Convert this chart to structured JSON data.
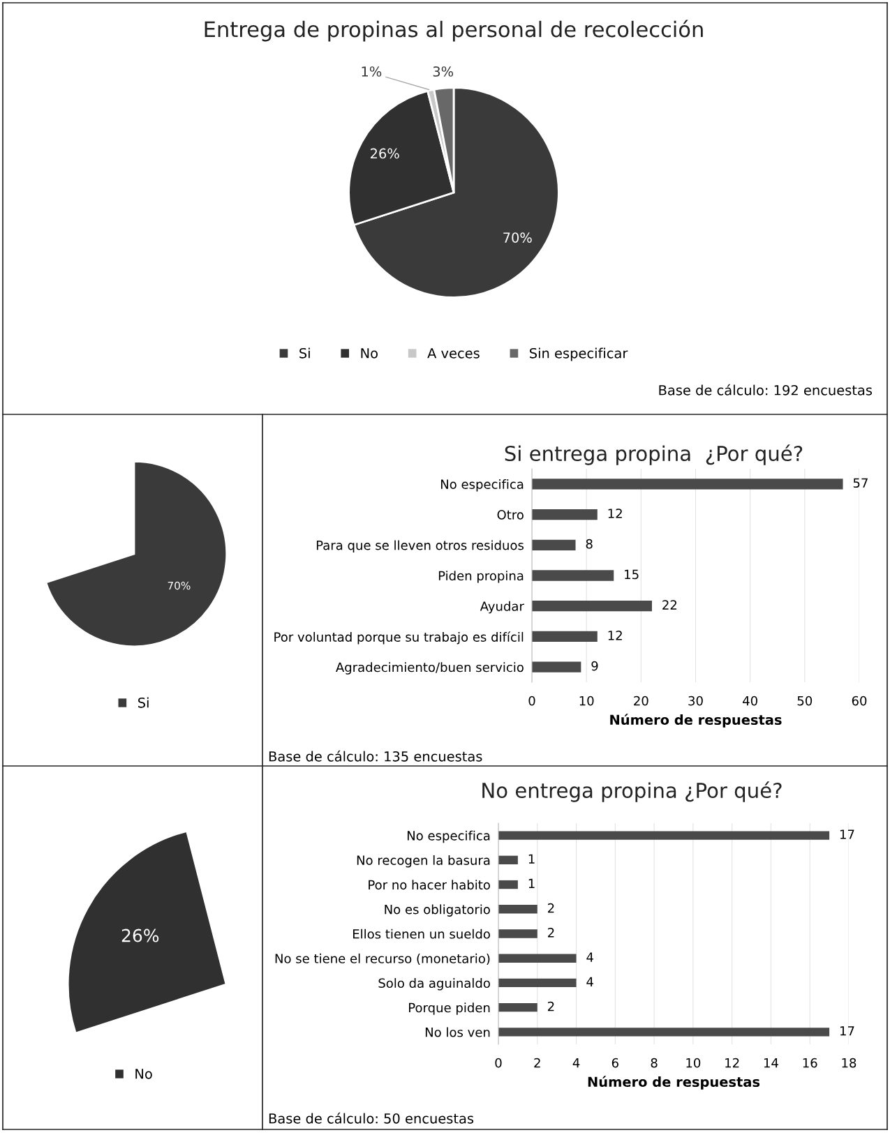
{
  "chart_data": [
    {
      "type": "pie",
      "title": "Entrega de propinas al personal de recolección",
      "categories": [
        "Si",
        "No",
        "A veces",
        "Sin especificar"
      ],
      "values": [
        70,
        26,
        1,
        3
      ],
      "colors": [
        "#3a3a3a",
        "#303030",
        "#c8c8c8",
        "#686868"
      ],
      "value_labels": [
        "70%",
        "26%",
        "1%",
        "3%"
      ],
      "legend": "bottom",
      "annotations": [
        "Base de cálculo: 192 encuestas"
      ]
    },
    {
      "type": "pie",
      "categories": [
        "Si"
      ],
      "values": [
        70
      ],
      "colors": [
        "#3a3a3a"
      ],
      "value_labels": [
        "70%"
      ],
      "legend": "bottom"
    },
    {
      "type": "bar",
      "orientation": "horizontal",
      "title": "Si entrega propina  ¿Por qué?",
      "xlabel": "Número de respuestas",
      "categories": [
        "No especifica",
        "Otro",
        "Para que se lleven otros residuos",
        "Piden propina",
        "Ayudar",
        "Por voluntad porque su trabajo es difícil",
        "Agradecimiento/buen servicio"
      ],
      "values": [
        57,
        12,
        8,
        15,
        22,
        12,
        9
      ],
      "color": "#4a4a4a",
      "xlim": [
        0,
        60
      ],
      "xticks": [
        0,
        10,
        20,
        30,
        40,
        50,
        60
      ],
      "grid": "x",
      "data_labels": true,
      "annotations": [
        "Base de cálculo: 135 encuestas"
      ]
    },
    {
      "type": "pie",
      "categories": [
        "No"
      ],
      "values": [
        26
      ],
      "colors": [
        "#303030"
      ],
      "value_labels": [
        "26%"
      ],
      "legend": "bottom"
    },
    {
      "type": "bar",
      "orientation": "horizontal",
      "title": "No entrega propina ¿Por qué?",
      "xlabel": "Número de respuestas",
      "categories": [
        "No especifica",
        "No recogen la basura",
        "Por no hacer habito",
        "No es obligatorio",
        "Ellos tienen un sueldo",
        "No se tiene el recurso (monetario)",
        "Solo da aguinaldo",
        "Porque piden",
        "No los ven"
      ],
      "values": [
        17,
        1,
        1,
        2,
        2,
        4,
        4,
        2,
        17
      ],
      "color": "#4a4a4a",
      "xlim": [
        0,
        18
      ],
      "xticks": [
        0,
        2,
        4,
        6,
        8,
        10,
        12,
        14,
        16,
        18
      ],
      "grid": "x",
      "data_labels": true,
      "annotations": [
        "Base de cálculo: 50 encuestas"
      ]
    }
  ]
}
